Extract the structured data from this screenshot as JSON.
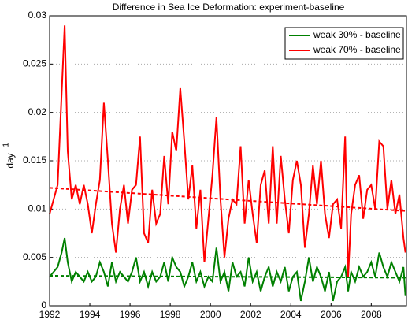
{
  "chart_data": {
    "type": "line",
    "title": "Difference in Sea Ice Deformation: experiment-baseline",
    "ylabel": "day",
    "ylabel_exponent": "-1",
    "x": [
      1992.0,
      1992.2,
      1992.4,
      1992.6,
      1992.75,
      1992.9,
      1993.1,
      1993.3,
      1993.5,
      1993.7,
      1993.9,
      1994.1,
      1994.3,
      1994.5,
      1994.7,
      1994.9,
      1995.1,
      1995.3,
      1995.5,
      1995.7,
      1995.9,
      1996.1,
      1996.3,
      1996.5,
      1996.7,
      1996.9,
      1997.1,
      1997.3,
      1997.5,
      1997.7,
      1997.9,
      1998.1,
      1998.3,
      1998.5,
      1998.7,
      1998.9,
      1999.1,
      1999.3,
      1999.5,
      1999.7,
      1999.9,
      2000.1,
      2000.3,
      2000.5,
      2000.7,
      2000.9,
      2001.1,
      2001.3,
      2001.5,
      2001.7,
      2001.9,
      2002.1,
      2002.3,
      2002.5,
      2002.7,
      2002.9,
      2003.1,
      2003.3,
      2003.5,
      2003.7,
      2003.9,
      2004.1,
      2004.3,
      2004.5,
      2004.7,
      2004.9,
      2005.1,
      2005.3,
      2005.5,
      2005.7,
      2005.9,
      2006.1,
      2006.3,
      2006.5,
      2006.7,
      2006.85,
      2007.0,
      2007.2,
      2007.4,
      2007.6,
      2007.8,
      2008.0,
      2008.2,
      2008.4,
      2008.6,
      2008.8,
      2009.0,
      2009.2,
      2009.4,
      2009.6,
      2009.7
    ],
    "series": [
      {
        "name": "weak 30% - baseline",
        "color": "#008000",
        "trend": [
          0.0031,
          0.0029
        ],
        "values": [
          0.003,
          0.0035,
          0.004,
          0.0055,
          0.007,
          0.0045,
          0.0025,
          0.0035,
          0.003,
          0.0025,
          0.0035,
          0.0025,
          0.003,
          0.0045,
          0.0035,
          0.002,
          0.0045,
          0.0025,
          0.0035,
          0.003,
          0.0025,
          0.0035,
          0.005,
          0.0025,
          0.0035,
          0.002,
          0.0035,
          0.0025,
          0.003,
          0.0045,
          0.0025,
          0.005,
          0.004,
          0.0035,
          0.002,
          0.003,
          0.0045,
          0.0025,
          0.0035,
          0.002,
          0.003,
          0.0025,
          0.006,
          0.0025,
          0.0035,
          0.0015,
          0.0045,
          0.003,
          0.0035,
          0.002,
          0.005,
          0.0025,
          0.0035,
          0.0015,
          0.003,
          0.004,
          0.002,
          0.0035,
          0.0025,
          0.004,
          0.0015,
          0.003,
          0.0035,
          0.0005,
          0.0025,
          0.005,
          0.0025,
          0.004,
          0.003,
          0.0015,
          0.0035,
          0.0005,
          0.0025,
          0.003,
          0.004,
          0.0015,
          0.0035,
          0.0025,
          0.004,
          0.003,
          0.0035,
          0.0045,
          0.003,
          0.0055,
          0.004,
          0.003,
          0.0045,
          0.0035,
          0.0025,
          0.004,
          0.001
        ]
      },
      {
        "name": "weak 70% - baseline",
        "color": "#ff0000",
        "trend": [
          0.0122,
          0.0098
        ],
        "values": [
          0.0095,
          0.011,
          0.0125,
          0.022,
          0.029,
          0.016,
          0.011,
          0.0125,
          0.0105,
          0.0125,
          0.0105,
          0.0075,
          0.0105,
          0.013,
          0.021,
          0.015,
          0.0085,
          0.0055,
          0.01,
          0.0125,
          0.0085,
          0.012,
          0.0125,
          0.0175,
          0.0075,
          0.0065,
          0.012,
          0.0085,
          0.0095,
          0.0155,
          0.0105,
          0.018,
          0.016,
          0.0225,
          0.017,
          0.011,
          0.0145,
          0.008,
          0.012,
          0.0045,
          0.009,
          0.0135,
          0.0195,
          0.011,
          0.005,
          0.009,
          0.011,
          0.0105,
          0.0165,
          0.0085,
          0.013,
          0.0095,
          0.0065,
          0.0125,
          0.014,
          0.0085,
          0.0165,
          0.0085,
          0.0155,
          0.011,
          0.0075,
          0.013,
          0.015,
          0.0125,
          0.006,
          0.0095,
          0.0145,
          0.0105,
          0.015,
          0.0095,
          0.007,
          0.0105,
          0.011,
          0.008,
          0.0175,
          0.003,
          0.0095,
          0.0125,
          0.0135,
          0.009,
          0.012,
          0.0125,
          0.01,
          0.017,
          0.0165,
          0.01,
          0.013,
          0.0095,
          0.0115,
          0.007,
          0.0055
        ]
      }
    ],
    "xlim": [
      1992,
      2009.75
    ],
    "xticks": [
      1992,
      1994,
      1996,
      1998,
      2000,
      2002,
      2004,
      2006,
      2008
    ],
    "ylim": [
      0,
      0.03
    ],
    "yticks": [
      0,
      0.005,
      0.01,
      0.015,
      0.02,
      0.025,
      0.03
    ],
    "grid": true,
    "legend": "upper right"
  }
}
